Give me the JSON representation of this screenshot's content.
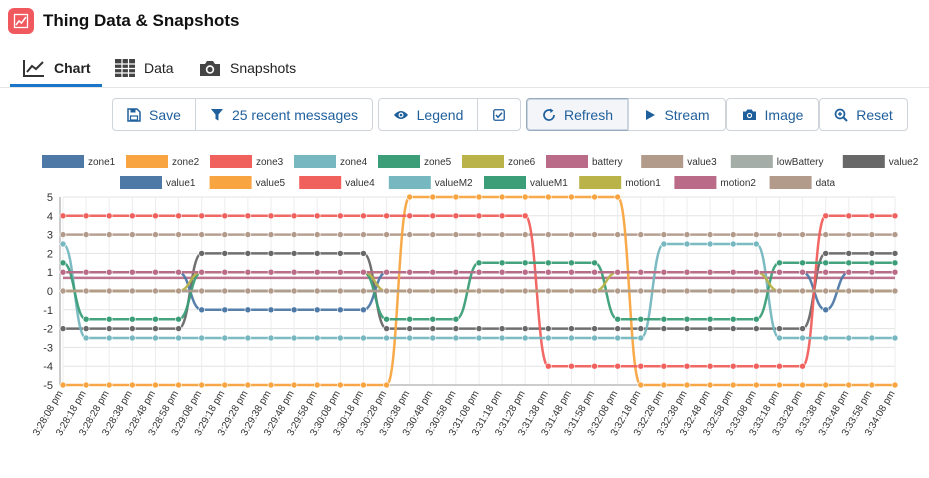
{
  "header": {
    "title": "Thing Data & Snapshots",
    "app_icon": "line-chart-icon"
  },
  "tabs": [
    {
      "label": "Chart",
      "icon": "line-chart-icon",
      "active": true
    },
    {
      "label": "Data",
      "icon": "table-icon",
      "active": false
    },
    {
      "label": "Snapshots",
      "icon": "camera-icon",
      "active": false
    }
  ],
  "toolbar": {
    "save_label": "Save",
    "filter_label": "25 recent messages",
    "legend_label": "Legend",
    "refresh_label": "Refresh",
    "stream_label": "Stream",
    "image_label": "Image",
    "reset_label": "Reset"
  },
  "colors": {
    "accent": "#1f5f9c",
    "app_icon_bg": "#f0595e",
    "tab_underline": "#1a74c7"
  },
  "chart_data": {
    "type": "line",
    "ylim": [
      -5,
      5
    ],
    "yticks": [
      5,
      4,
      3,
      2,
      1,
      0,
      -1,
      -2,
      -3,
      -4,
      -5
    ],
    "grid": true,
    "legend_position": "top",
    "x": [
      "3:28:08 pm",
      "3:28:18 pm",
      "3:28:28 pm",
      "3:28:38 pm",
      "3:28:48 pm",
      "3:28:58 pm",
      "3:29:08 pm",
      "3:29:18 pm",
      "3:29:28 pm",
      "3:29:38 pm",
      "3:29:48 pm",
      "3:29:58 pm",
      "3:30:08 pm",
      "3:30:18 pm",
      "3:30:28 pm",
      "3:30:38 pm",
      "3:30:48 pm",
      "3:30:58 pm",
      "3:31:08 pm",
      "3:31:18 pm",
      "3:31:28 pm",
      "3:31:38 pm",
      "3:31:48 pm",
      "3:31:58 pm",
      "3:32:08 pm",
      "3:32:18 pm",
      "3:32:28 pm",
      "3:32:38 pm",
      "3:32:48 pm",
      "3:32:58 pm",
      "3:33:08 pm",
      "3:33:18 pm",
      "3:33:28 pm",
      "3:33:38 pm",
      "3:33:48 pm",
      "3:33:58 pm",
      "3:34:08 pm"
    ],
    "series": [
      {
        "name": "zone1",
        "color": "#4e79a7",
        "values": [
          0,
          0,
          0,
          0,
          0,
          0,
          0,
          0,
          0,
          0,
          0,
          0,
          0,
          0,
          0,
          0,
          0,
          0,
          0,
          0,
          0,
          0,
          0,
          0,
          0,
          0,
          0,
          0,
          0,
          0,
          0,
          0,
          0,
          0,
          0,
          0,
          0
        ],
        "points": false
      },
      {
        "name": "zone2",
        "color": "#f8a541",
        "values": [
          0,
          0,
          0,
          0,
          0,
          0,
          0,
          0,
          0,
          0,
          0,
          0,
          0,
          0,
          0,
          0,
          0,
          0,
          0,
          0,
          0,
          0,
          0,
          0,
          0,
          0,
          0,
          0,
          0,
          0,
          0,
          0,
          0,
          0,
          0,
          0,
          0
        ],
        "points": false
      },
      {
        "name": "zone3",
        "color": "#f0605d",
        "values": [
          1,
          1,
          1,
          1,
          1,
          1,
          1,
          1,
          1,
          1,
          1,
          1,
          1,
          1,
          1,
          1,
          1,
          1,
          1,
          1,
          1,
          1,
          1,
          1,
          1,
          1,
          1,
          1,
          1,
          1,
          1,
          1,
          1,
          1,
          1,
          1,
          1
        ],
        "points": false
      },
      {
        "name": "zone4",
        "color": "#76b7c0",
        "values": [
          1,
          1,
          1,
          1,
          1,
          1,
          1,
          1,
          1,
          1,
          1,
          1,
          1,
          1,
          1,
          1,
          1,
          1,
          1,
          1,
          1,
          1,
          1,
          1,
          1,
          1,
          1,
          1,
          1,
          1,
          1,
          1,
          1,
          1,
          1,
          1,
          1
        ],
        "points": false
      },
      {
        "name": "zone5",
        "color": "#3b9e78",
        "values": [
          0,
          0,
          0,
          0,
          0,
          0,
          0,
          0,
          0,
          0,
          0,
          0,
          0,
          0,
          0,
          0,
          0,
          0,
          0,
          0,
          0,
          0,
          0,
          0,
          0,
          0,
          0,
          0,
          0,
          0,
          0,
          0,
          0,
          0,
          0,
          0,
          0
        ],
        "points": false
      },
      {
        "name": "zone6",
        "color": "#b9b34a",
        "values": [
          1,
          1,
          1,
          1,
          1,
          1,
          1,
          1,
          1,
          1,
          1,
          1,
          1,
          1,
          1,
          1,
          1,
          1,
          1,
          1,
          1,
          1,
          1,
          1,
          1,
          1,
          1,
          1,
          1,
          1,
          1,
          1,
          1,
          1,
          1,
          1,
          1
        ],
        "points": false
      },
      {
        "name": "battery",
        "color": "#b96b87",
        "values": [
          0.7,
          0.7,
          0.7,
          0.7,
          0.7,
          0.7,
          0.7,
          0.7,
          0.7,
          0.7,
          0.7,
          0.7,
          0.7,
          0.7,
          0.7,
          0.7,
          0.7,
          0.7,
          0.7,
          0.7,
          0.7,
          0.7,
          0.7,
          0.7,
          0.7,
          0.7,
          0.7,
          0.7,
          0.7,
          0.7,
          0.7,
          0.7,
          0.7,
          0.7,
          0.7,
          0.7,
          0.7
        ],
        "points": false
      },
      {
        "name": "value3",
        "color": "#b39b8c",
        "values": [
          3,
          3,
          3,
          3,
          3,
          3,
          3,
          3,
          3,
          3,
          3,
          3,
          3,
          3,
          3,
          3,
          3,
          3,
          3,
          3,
          3,
          3,
          3,
          3,
          3,
          3,
          3,
          3,
          3,
          3,
          3,
          3,
          3,
          3,
          3,
          3,
          3
        ],
        "points": true
      },
      {
        "name": "lowBattery",
        "color": "#a5ada8",
        "values": [
          0,
          0,
          0,
          0,
          0,
          0,
          0,
          0,
          0,
          0,
          0,
          0,
          0,
          0,
          0,
          0,
          0,
          0,
          0,
          0,
          0,
          0,
          0,
          0,
          0,
          0,
          0,
          0,
          0,
          0,
          0,
          0,
          0,
          0,
          0,
          0,
          0
        ],
        "points": false
      },
      {
        "name": "value2",
        "color": "#686868",
        "values": [
          -2,
          -2,
          -2,
          -2,
          -2,
          -2,
          2,
          2,
          2,
          2,
          2,
          2,
          2,
          2,
          -2,
          -2,
          -2,
          -2,
          -2,
          -2,
          -2,
          -2,
          -2,
          -2,
          -2,
          -2,
          -2,
          -2,
          -2,
          -2,
          -2,
          -2,
          -2,
          2,
          2,
          2,
          2
        ],
        "points": true
      },
      {
        "name": "value1",
        "color": "#4e79a7",
        "values": [
          1,
          1,
          1,
          1,
          1,
          1,
          -1,
          -1,
          -1,
          -1,
          -1,
          -1,
          -1,
          -1,
          1,
          1,
          1,
          1,
          1,
          1,
          1,
          1,
          1,
          1,
          1,
          1,
          1,
          1,
          1,
          1,
          1,
          1,
          1,
          -1,
          1,
          1,
          1
        ],
        "points": true
      },
      {
        "name": "value5",
        "color": "#f8a541",
        "values": [
          -5,
          -5,
          -5,
          -5,
          -5,
          -5,
          -5,
          -5,
          -5,
          -5,
          -5,
          -5,
          -5,
          -5,
          -5,
          5,
          5,
          5,
          5,
          5,
          5,
          5,
          5,
          5,
          5,
          -5,
          -5,
          -5,
          -5,
          -5,
          -5,
          -5,
          -5,
          -5,
          -5,
          -5,
          -5
        ],
        "points": true
      },
      {
        "name": "value4",
        "color": "#f0605d",
        "values": [
          4,
          4,
          4,
          4,
          4,
          4,
          4,
          4,
          4,
          4,
          4,
          4,
          4,
          4,
          4,
          4,
          4,
          4,
          4,
          4,
          4,
          -4,
          -4,
          -4,
          -4,
          -4,
          -4,
          -4,
          -4,
          -4,
          -4,
          -4,
          -4,
          4,
          4,
          4,
          4
        ],
        "points": true
      },
      {
        "name": "valueM2",
        "color": "#76b7c0",
        "values": [
          2.5,
          -2.5,
          -2.5,
          -2.5,
          -2.5,
          -2.5,
          -2.5,
          -2.5,
          -2.5,
          -2.5,
          -2.5,
          -2.5,
          -2.5,
          -2.5,
          -2.5,
          -2.5,
          -2.5,
          -2.5,
          -2.5,
          -2.5,
          -2.5,
          -2.5,
          -2.5,
          -2.5,
          -2.5,
          -2.5,
          2.5,
          2.5,
          2.5,
          2.5,
          2.5,
          -2.5,
          -2.5,
          -2.5,
          -2.5,
          -2.5,
          -2.5
        ],
        "points": true
      },
      {
        "name": "valueM1",
        "color": "#3b9e78",
        "values": [
          1.5,
          -1.5,
          -1.5,
          -1.5,
          -1.5,
          -1.5,
          1,
          1,
          1,
          1,
          1,
          1,
          1,
          1,
          -1.5,
          -1.5,
          -1.5,
          -1.5,
          1.5,
          1.5,
          1.5,
          1.5,
          1.5,
          1.5,
          -1.5,
          -1.5,
          -1.5,
          -1.5,
          -1.5,
          -1.5,
          -1.5,
          1.5,
          1.5,
          1.5,
          1.5,
          1.5,
          1.5
        ],
        "points": true
      },
      {
        "name": "motion1",
        "color": "#b9b34a",
        "values": [
          0,
          0,
          0,
          0,
          0,
          0,
          1,
          1,
          1,
          1,
          1,
          1,
          1,
          1,
          0,
          0,
          0,
          0,
          0,
          0,
          0,
          0,
          0,
          0,
          1,
          1,
          1,
          1,
          1,
          1,
          1,
          0,
          0,
          0,
          0,
          0,
          0
        ],
        "points": true
      },
      {
        "name": "motion2",
        "color": "#b96b87",
        "values": [
          1,
          1,
          1,
          1,
          1,
          1,
          1,
          1,
          1,
          1,
          1,
          1,
          1,
          1,
          1,
          1,
          1,
          1,
          1,
          1,
          1,
          1,
          1,
          1,
          1,
          1,
          1,
          1,
          1,
          1,
          1,
          1,
          1,
          1,
          1,
          1,
          1
        ],
        "points": true
      },
      {
        "name": "data",
        "color": "#b39b8c",
        "values": [
          0,
          0,
          0,
          0,
          0,
          0,
          0,
          0,
          0,
          0,
          0,
          0,
          0,
          0,
          0,
          0,
          0,
          0,
          0,
          0,
          0,
          0,
          0,
          0,
          0,
          0,
          0,
          0,
          0,
          0,
          0,
          0,
          0,
          0,
          0,
          0,
          0
        ],
        "points": true
      }
    ]
  }
}
